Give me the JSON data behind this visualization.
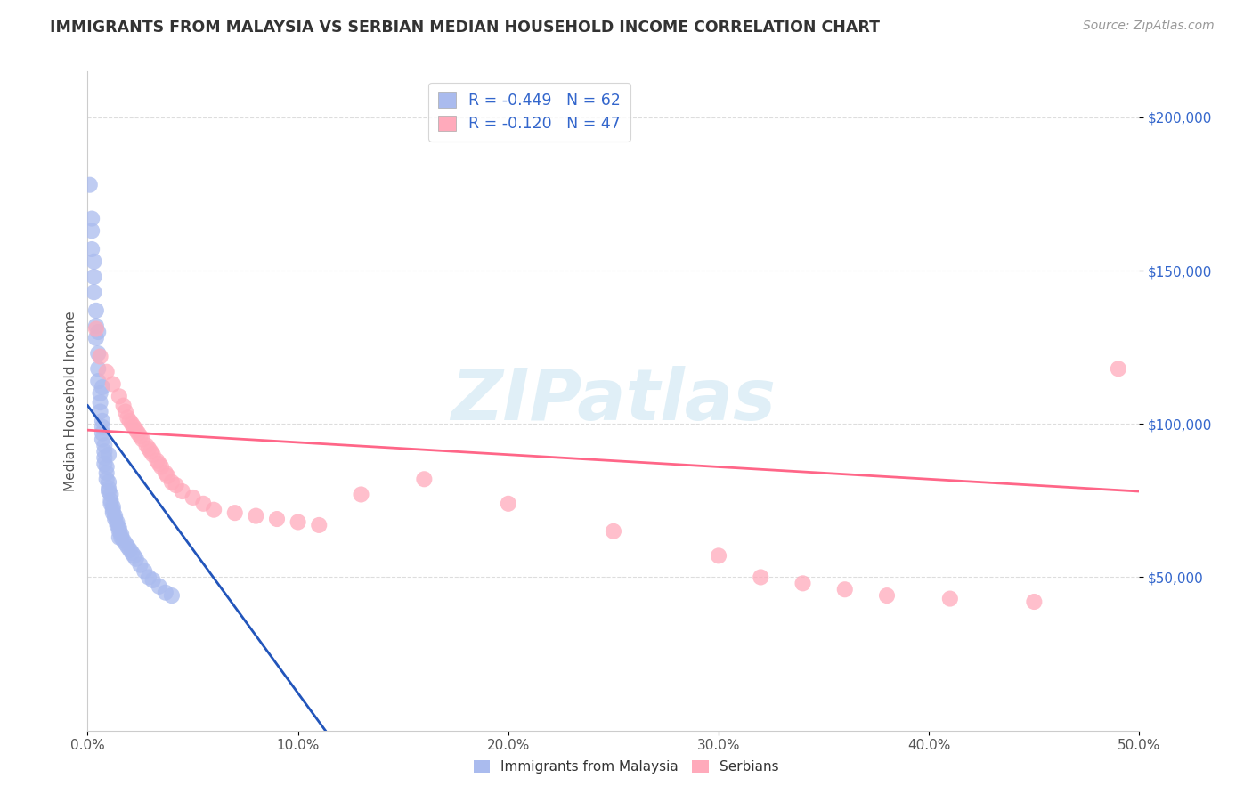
{
  "title": "IMMIGRANTS FROM MALAYSIA VS SERBIAN MEDIAN HOUSEHOLD INCOME CORRELATION CHART",
  "source": "Source: ZipAtlas.com",
  "ylabel": "Median Household Income",
  "legend_label1": "Immigrants from Malaysia",
  "legend_label2": "Serbians",
  "legend_r1": "-0.449",
  "legend_n1": "62",
  "legend_r2": "-0.120",
  "legend_n2": "47",
  "blue_color": "#AABBEE",
  "pink_color": "#FFAABB",
  "blue_line_color": "#2255BB",
  "pink_line_color": "#FF6688",
  "watermark_text": "ZIPatlas",
  "watermark_color": "#BBDDEE",
  "title_color": "#333333",
  "source_color": "#999999",
  "axis_value_color": "#3366CC",
  "grid_color": "#DDDDDD",
  "background_color": "#FFFFFF",
  "ytick_values": [
    50000,
    100000,
    150000,
    200000
  ],
  "ytick_labels": [
    "$50,000",
    "$100,000",
    "$150,000",
    "$200,000"
  ],
  "xtick_values": [
    0.0,
    0.1,
    0.2,
    0.3,
    0.4,
    0.5
  ],
  "xtick_labels": [
    "0.0%",
    "10.0%",
    "20.0%",
    "30.0%",
    "40.0%",
    "50.0%"
  ],
  "xmin": 0.0,
  "xmax": 0.5,
  "ymin": 0,
  "ymax": 215000,
  "blue_x": [
    0.001,
    0.002,
    0.002,
    0.003,
    0.003,
    0.004,
    0.004,
    0.004,
    0.005,
    0.005,
    0.005,
    0.006,
    0.006,
    0.006,
    0.007,
    0.007,
    0.007,
    0.007,
    0.008,
    0.008,
    0.008,
    0.008,
    0.009,
    0.009,
    0.009,
    0.01,
    0.01,
    0.01,
    0.011,
    0.011,
    0.011,
    0.012,
    0.012,
    0.012,
    0.013,
    0.013,
    0.014,
    0.014,
    0.015,
    0.015,
    0.016,
    0.016,
    0.017,
    0.018,
    0.019,
    0.02,
    0.021,
    0.022,
    0.023,
    0.025,
    0.027,
    0.029,
    0.031,
    0.034,
    0.037,
    0.04,
    0.002,
    0.003,
    0.005,
    0.007,
    0.01,
    0.015
  ],
  "blue_y": [
    178000,
    163000,
    157000,
    148000,
    143000,
    137000,
    132000,
    128000,
    123000,
    118000,
    114000,
    110000,
    107000,
    104000,
    101000,
    99000,
    97000,
    95000,
    93000,
    91000,
    89000,
    87000,
    86000,
    84000,
    82000,
    81000,
    79000,
    78000,
    77000,
    75000,
    74000,
    73000,
    72000,
    71000,
    70000,
    69000,
    68000,
    67000,
    66000,
    65000,
    64000,
    63000,
    62000,
    61000,
    60000,
    59000,
    58000,
    57000,
    56000,
    54000,
    52000,
    50000,
    49000,
    47000,
    45000,
    44000,
    167000,
    153000,
    130000,
    112000,
    90000,
    63000
  ],
  "pink_x": [
    0.004,
    0.006,
    0.009,
    0.012,
    0.015,
    0.017,
    0.018,
    0.019,
    0.02,
    0.021,
    0.022,
    0.023,
    0.024,
    0.025,
    0.026,
    0.028,
    0.029,
    0.03,
    0.031,
    0.033,
    0.034,
    0.035,
    0.037,
    0.038,
    0.04,
    0.042,
    0.045,
    0.05,
    0.055,
    0.06,
    0.07,
    0.08,
    0.09,
    0.1,
    0.11,
    0.13,
    0.16,
    0.2,
    0.25,
    0.3,
    0.32,
    0.34,
    0.36,
    0.38,
    0.41,
    0.45,
    0.49
  ],
  "pink_y": [
    131000,
    122000,
    117000,
    113000,
    109000,
    106000,
    104000,
    102000,
    101000,
    100000,
    99000,
    98000,
    97000,
    96000,
    95000,
    93000,
    92000,
    91000,
    90000,
    88000,
    87000,
    86000,
    84000,
    83000,
    81000,
    80000,
    78000,
    76000,
    74000,
    72000,
    71000,
    70000,
    69000,
    68000,
    67000,
    77000,
    82000,
    74000,
    65000,
    57000,
    50000,
    48000,
    46000,
    44000,
    43000,
    42000,
    118000
  ],
  "blue_trend_x": [
    0.0,
    0.113
  ],
  "blue_trend_y": [
    106000,
    0
  ],
  "pink_trend_x": [
    0.0,
    0.5
  ],
  "pink_trend_y": [
    98000,
    78000
  ]
}
